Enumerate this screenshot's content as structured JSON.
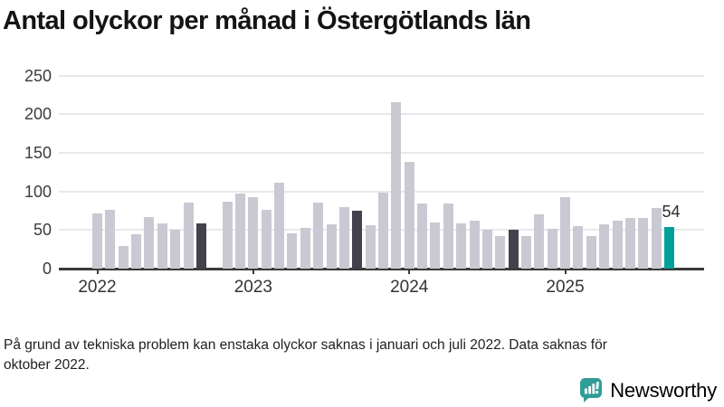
{
  "title": "Antal olyckor per månad i Östergötlands län",
  "footnote": "På grund av tekniska problem kan enstaka olyckor saknas i januari och juli 2022. Data saknas för\noktober 2022.",
  "annotation": {
    "value_label": "54"
  },
  "brand": {
    "name": "Newsworthy",
    "icon": "newsworthy-speech-bubble-barchart-icon",
    "color": "#2f9e95"
  },
  "colors": {
    "bar_default": "#c9c9d3",
    "bar_highlight": "#42424e",
    "bar_current": "#00a099",
    "gridline": "#e8e8ec",
    "axis": "#3a3a3a",
    "tick_text": "#3b3b3b"
  },
  "chart_data": {
    "type": "bar",
    "title": "Antal olyckor per månad i Östergötlands län",
    "xlabel": "",
    "ylabel": "",
    "ylim": [
      0,
      260
    ],
    "y_ticks": [
      0,
      50,
      100,
      150,
      200,
      250
    ],
    "x_ticks": [
      "2022",
      "2023",
      "2024",
      "2025"
    ],
    "grid": true,
    "legend": false,
    "missing_months": [
      "2022-10"
    ],
    "highlight_note": "September of each year highlighted; latest month (2025-09) in teal with data label 54",
    "months": [
      {
        "m": "2022-01",
        "v": 72,
        "role": "past"
      },
      {
        "m": "2022-02",
        "v": 76,
        "role": "past"
      },
      {
        "m": "2022-03",
        "v": 29,
        "role": "past"
      },
      {
        "m": "2022-04",
        "v": 44,
        "role": "past"
      },
      {
        "m": "2022-05",
        "v": 67,
        "role": "past"
      },
      {
        "m": "2022-06",
        "v": 59,
        "role": "past"
      },
      {
        "m": "2022-07",
        "v": 50,
        "role": "past"
      },
      {
        "m": "2022-08",
        "v": 85,
        "role": "past"
      },
      {
        "m": "2022-09",
        "v": 58,
        "role": "compare"
      },
      {
        "m": "2022-10",
        "v": null,
        "role": "past"
      },
      {
        "m": "2022-11",
        "v": 87,
        "role": "past"
      },
      {
        "m": "2022-12",
        "v": 97,
        "role": "past"
      },
      {
        "m": "2023-01",
        "v": 92,
        "role": "past"
      },
      {
        "m": "2023-02",
        "v": 76,
        "role": "past"
      },
      {
        "m": "2023-03",
        "v": 111,
        "role": "past"
      },
      {
        "m": "2023-04",
        "v": 46,
        "role": "past"
      },
      {
        "m": "2023-05",
        "v": 53,
        "role": "past"
      },
      {
        "m": "2023-06",
        "v": 85,
        "role": "past"
      },
      {
        "m": "2023-07",
        "v": 57,
        "role": "past"
      },
      {
        "m": "2023-08",
        "v": 80,
        "role": "past"
      },
      {
        "m": "2023-09",
        "v": 75,
        "role": "compare"
      },
      {
        "m": "2023-10",
        "v": 56,
        "role": "past"
      },
      {
        "m": "2023-11",
        "v": 98,
        "role": "past"
      },
      {
        "m": "2023-12",
        "v": 216,
        "role": "past"
      },
      {
        "m": "2024-01",
        "v": 138,
        "role": "past"
      },
      {
        "m": "2024-02",
        "v": 84,
        "role": "past"
      },
      {
        "m": "2024-03",
        "v": 60,
        "role": "past"
      },
      {
        "m": "2024-04",
        "v": 84,
        "role": "past"
      },
      {
        "m": "2024-05",
        "v": 59,
        "role": "past"
      },
      {
        "m": "2024-06",
        "v": 62,
        "role": "past"
      },
      {
        "m": "2024-07",
        "v": 50,
        "role": "past"
      },
      {
        "m": "2024-08",
        "v": 42,
        "role": "past"
      },
      {
        "m": "2024-09",
        "v": 50,
        "role": "compare"
      },
      {
        "m": "2024-10",
        "v": 42,
        "role": "past"
      },
      {
        "m": "2024-11",
        "v": 70,
        "role": "past"
      },
      {
        "m": "2024-12",
        "v": 52,
        "role": "past"
      },
      {
        "m": "2025-01",
        "v": 93,
        "role": "past"
      },
      {
        "m": "2025-02",
        "v": 55,
        "role": "past"
      },
      {
        "m": "2025-03",
        "v": 42,
        "role": "past"
      },
      {
        "m": "2025-04",
        "v": 57,
        "role": "past"
      },
      {
        "m": "2025-05",
        "v": 62,
        "role": "past"
      },
      {
        "m": "2025-06",
        "v": 66,
        "role": "past"
      },
      {
        "m": "2025-07",
        "v": 66,
        "role": "past"
      },
      {
        "m": "2025-08",
        "v": 79,
        "role": "past"
      },
      {
        "m": "2025-09",
        "v": 54,
        "role": "current"
      }
    ]
  }
}
